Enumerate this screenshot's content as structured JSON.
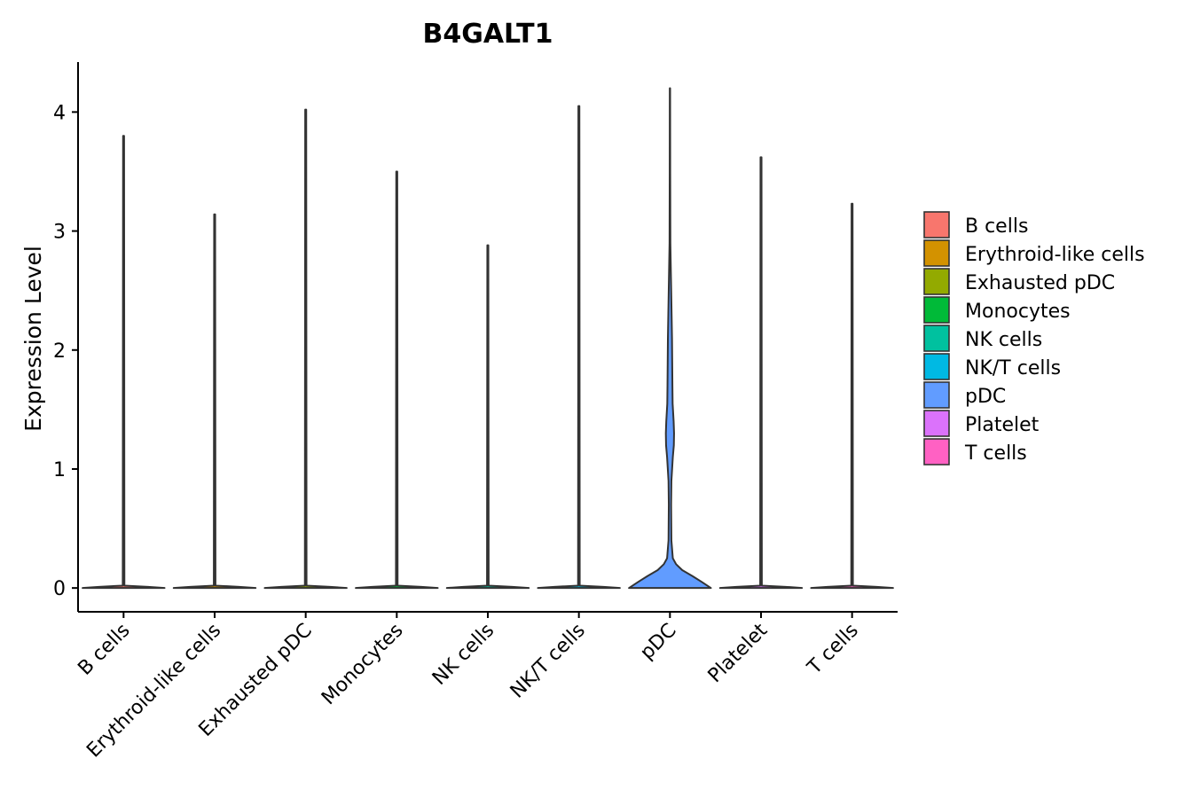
{
  "chart_data": {
    "type": "violin",
    "title": "B4GALT1",
    "xlabel": "",
    "ylabel": "Expression Level",
    "ylim": [
      -0.2,
      4.42
    ],
    "yticks": [
      0,
      1,
      2,
      3,
      4
    ],
    "grid": false,
    "legend_position": "right",
    "categories": [
      "B cells",
      "Erythroid-like cells",
      "Exhausted pDC",
      "Monocytes",
      "NK cells",
      "NK/T cells",
      "pDC",
      "Platelet",
      "T cells"
    ],
    "colors": [
      "#F8766D",
      "#D39200",
      "#93AA00",
      "#00BA38",
      "#00C19F",
      "#00B9E3",
      "#619CFF",
      "#DB72FB",
      "#FF61C3"
    ],
    "series": [
      {
        "name": "B cells",
        "max": 3.8,
        "profile": [
          [
            0,
            1.0
          ],
          [
            0.01,
            0.6
          ],
          [
            0.02,
            0.02
          ],
          [
            3.8,
            0.012
          ]
        ]
      },
      {
        "name": "Erythroid-like cells",
        "max": 3.14,
        "profile": [
          [
            0,
            1.0
          ],
          [
            0.01,
            0.6
          ],
          [
            0.02,
            0.02
          ],
          [
            3.14,
            0.012
          ]
        ]
      },
      {
        "name": "Exhausted pDC",
        "max": 4.02,
        "profile": [
          [
            0,
            1.0
          ],
          [
            0.01,
            0.6
          ],
          [
            0.02,
            0.02
          ],
          [
            4.02,
            0.012
          ]
        ]
      },
      {
        "name": "Monocytes",
        "max": 3.5,
        "profile": [
          [
            0,
            1.0
          ],
          [
            0.01,
            0.6
          ],
          [
            0.02,
            0.02
          ],
          [
            3.5,
            0.012
          ]
        ]
      },
      {
        "name": "NK cells",
        "max": 2.88,
        "profile": [
          [
            0,
            1.0
          ],
          [
            0.01,
            0.6
          ],
          [
            0.02,
            0.02
          ],
          [
            2.88,
            0.012
          ]
        ]
      },
      {
        "name": "NK/T cells",
        "max": 4.05,
        "profile": [
          [
            0,
            1.0
          ],
          [
            0.01,
            0.6
          ],
          [
            0.02,
            0.02
          ],
          [
            4.05,
            0.012
          ]
        ]
      },
      {
        "name": "pDC",
        "max": 4.2,
        "profile": [
          [
            0,
            1.0
          ],
          [
            0.05,
            0.78
          ],
          [
            0.1,
            0.55
          ],
          [
            0.15,
            0.3
          ],
          [
            0.2,
            0.15
          ],
          [
            0.25,
            0.07
          ],
          [
            0.4,
            0.035
          ],
          [
            0.7,
            0.028
          ],
          [
            0.9,
            0.035
          ],
          [
            1.1,
            0.07
          ],
          [
            1.2,
            0.095
          ],
          [
            1.3,
            0.1
          ],
          [
            1.4,
            0.09
          ],
          [
            1.55,
            0.065
          ],
          [
            1.7,
            0.06
          ],
          [
            1.9,
            0.055
          ],
          [
            2.1,
            0.05
          ],
          [
            2.3,
            0.04
          ],
          [
            2.6,
            0.025
          ],
          [
            2.9,
            0.01
          ],
          [
            3.5,
            0.006
          ],
          [
            4.2,
            0.004
          ]
        ]
      },
      {
        "name": "Platelet",
        "max": 3.62,
        "profile": [
          [
            0,
            1.0
          ],
          [
            0.01,
            0.6
          ],
          [
            0.02,
            0.02
          ],
          [
            3.62,
            0.012
          ]
        ]
      },
      {
        "name": "T cells",
        "max": 3.23,
        "profile": [
          [
            0,
            1.0
          ],
          [
            0.01,
            0.6
          ],
          [
            0.02,
            0.02
          ],
          [
            3.23,
            0.012
          ]
        ]
      }
    ],
    "legend": {
      "entries": [
        "B cells",
        "Erythroid-like cells",
        "Exhausted pDC",
        "Monocytes",
        "NK cells",
        "NK/T cells",
        "pDC",
        "Platelet",
        "T cells"
      ]
    }
  }
}
